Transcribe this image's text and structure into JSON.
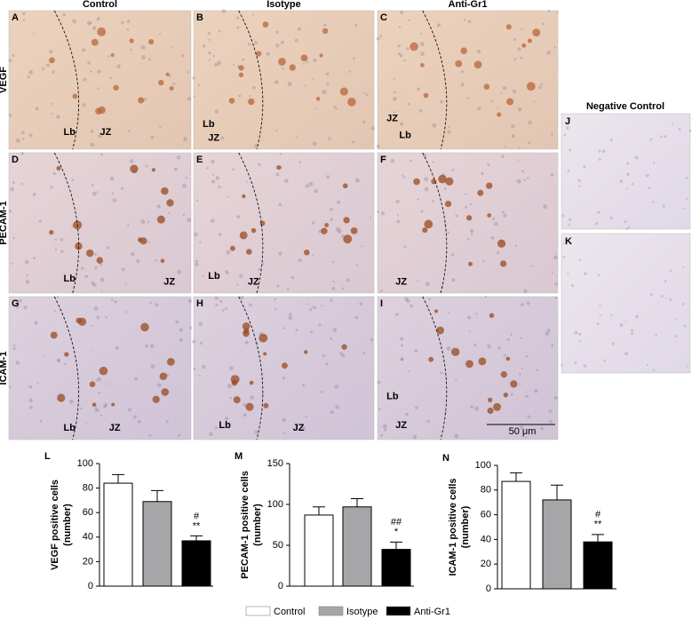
{
  "figure": {
    "column_headers": [
      "Control",
      "Isotype",
      "Anti-Gr1"
    ],
    "row_labels": [
      "VEGF",
      "PECAM-1",
      "ICAM-1"
    ],
    "panels": [
      {
        "letter": "A",
        "labels": [
          "Lb",
          "JZ"
        ]
      },
      {
        "letter": "B",
        "labels": [
          "Lb",
          "JZ"
        ]
      },
      {
        "letter": "C",
        "labels": [
          "JZ",
          "Lb"
        ]
      },
      {
        "letter": "D",
        "labels": [
          "Lb",
          "JZ"
        ]
      },
      {
        "letter": "E",
        "labels": [
          "Lb",
          "JZ"
        ]
      },
      {
        "letter": "F",
        "labels": [
          "JZ"
        ]
      },
      {
        "letter": "G",
        "labels": [
          "Lb",
          "JZ"
        ]
      },
      {
        "letter": "H",
        "labels": [
          "Lb",
          "JZ"
        ]
      },
      {
        "letter": "I",
        "labels": [
          "Lb",
          "JZ"
        ]
      }
    ],
    "negative_control": {
      "title": "Negative Control",
      "panels": [
        "J",
        "K"
      ]
    },
    "scale_bar": "50 μm"
  },
  "chart_data": [
    {
      "type": "bar",
      "panel_label": "L",
      "y_label": [
        "VEGF  positive cells",
        "(number)"
      ],
      "categories": [
        "Control",
        "Isotype",
        "Anti-Gr1"
      ],
      "colors": [
        "#ffffff",
        "#a6a6a8",
        "#000000"
      ],
      "values": [
        84,
        69,
        37
      ],
      "errors": [
        7,
        9,
        4
      ],
      "annotations": [
        "#",
        "**"
      ],
      "ylim": [
        0,
        100
      ],
      "yticks": [
        0,
        20,
        40,
        60,
        80,
        100
      ]
    },
    {
      "type": "bar",
      "panel_label": "M",
      "y_label": [
        "PECAM-1 positive cells",
        "(number)"
      ],
      "categories": [
        "Control",
        "Isotype",
        "Anti-Gr1"
      ],
      "colors": [
        "#ffffff",
        "#a6a6a8",
        "#000000"
      ],
      "values": [
        87,
        97,
        45
      ],
      "errors": [
        10,
        10,
        9
      ],
      "annotations": [
        "##",
        "*"
      ],
      "ylim": [
        0,
        150
      ],
      "yticks": [
        0,
        50,
        100,
        150
      ]
    },
    {
      "type": "bar",
      "panel_label": "N",
      "y_label": [
        "ICAM-1 positive cells",
        "(number)"
      ],
      "categories": [
        "Control",
        "Isotype",
        "Anti-Gr1"
      ],
      "colors": [
        "#ffffff",
        "#a6a6a8",
        "#000000"
      ],
      "values": [
        87,
        72,
        38
      ],
      "errors": [
        7,
        12,
        6
      ],
      "annotations": [
        "#",
        "**"
      ],
      "ylim": [
        0,
        100
      ],
      "yticks": [
        0,
        20,
        40,
        60,
        80,
        100
      ]
    }
  ]
}
